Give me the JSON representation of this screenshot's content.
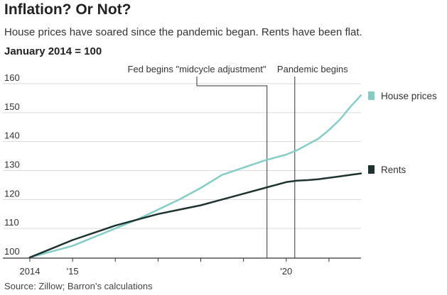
{
  "chart_data": {
    "type": "line",
    "title": "Inflation? Or Not?",
    "subtitle": "House prices have soared since the pandemic began. Rents have been flat.",
    "unit_label": "January 2014 = 100",
    "source": "Source: Zillow; Barron’s calculations",
    "ylim": [
      100,
      160
    ],
    "y_ticks": [
      100,
      110,
      120,
      130,
      140,
      150,
      160
    ],
    "xlim": [
      2014,
      2021.75
    ],
    "x_ticks": [
      {
        "value": 2014,
        "label": "2014"
      },
      {
        "value": 2015,
        "label": "'15"
      },
      {
        "value": 2016,
        "label": ""
      },
      {
        "value": 2017,
        "label": ""
      },
      {
        "value": 2018,
        "label": ""
      },
      {
        "value": 2019,
        "label": ""
      },
      {
        "value": 2020,
        "label": "'20"
      },
      {
        "value": 2021,
        "label": ""
      }
    ],
    "grid": "horizontal",
    "annotations": [
      {
        "label": "Fed begins \"midcycle adjustment\"",
        "x": 2019.55
      },
      {
        "label": "Pandemic begins",
        "x": 2020.2
      }
    ],
    "series": [
      {
        "name": "House prices",
        "color": "#84cdc7",
        "x": [
          2014,
          2014.5,
          2015,
          2015.5,
          2016,
          2016.5,
          2017,
          2017.5,
          2018,
          2018.5,
          2019,
          2019.5,
          2019.75,
          2020,
          2020.25,
          2020.5,
          2020.75,
          2021,
          2021.25,
          2021.5,
          2021.75
        ],
        "values": [
          100,
          102,
          104,
          107,
          110,
          113,
          116.5,
          120,
          124,
          128.5,
          131,
          133.5,
          134.5,
          135.5,
          137,
          139,
          141,
          144,
          147.5,
          152,
          156
        ]
      },
      {
        "name": "Rents",
        "color": "#1c3330",
        "x": [
          2014,
          2014.5,
          2015,
          2015.5,
          2016,
          2016.5,
          2017,
          2017.5,
          2018,
          2018.5,
          2019,
          2019.5,
          2019.75,
          2020,
          2020.25,
          2020.5,
          2020.75,
          2021,
          2021.25,
          2021.5,
          2021.75
        ],
        "values": [
          100,
          103,
          106,
          108.5,
          111,
          113,
          115,
          116.5,
          118,
          120,
          122,
          124,
          125,
          126,
          126.5,
          126.7,
          127,
          127.5,
          128,
          128.5,
          129
        ]
      }
    ]
  }
}
